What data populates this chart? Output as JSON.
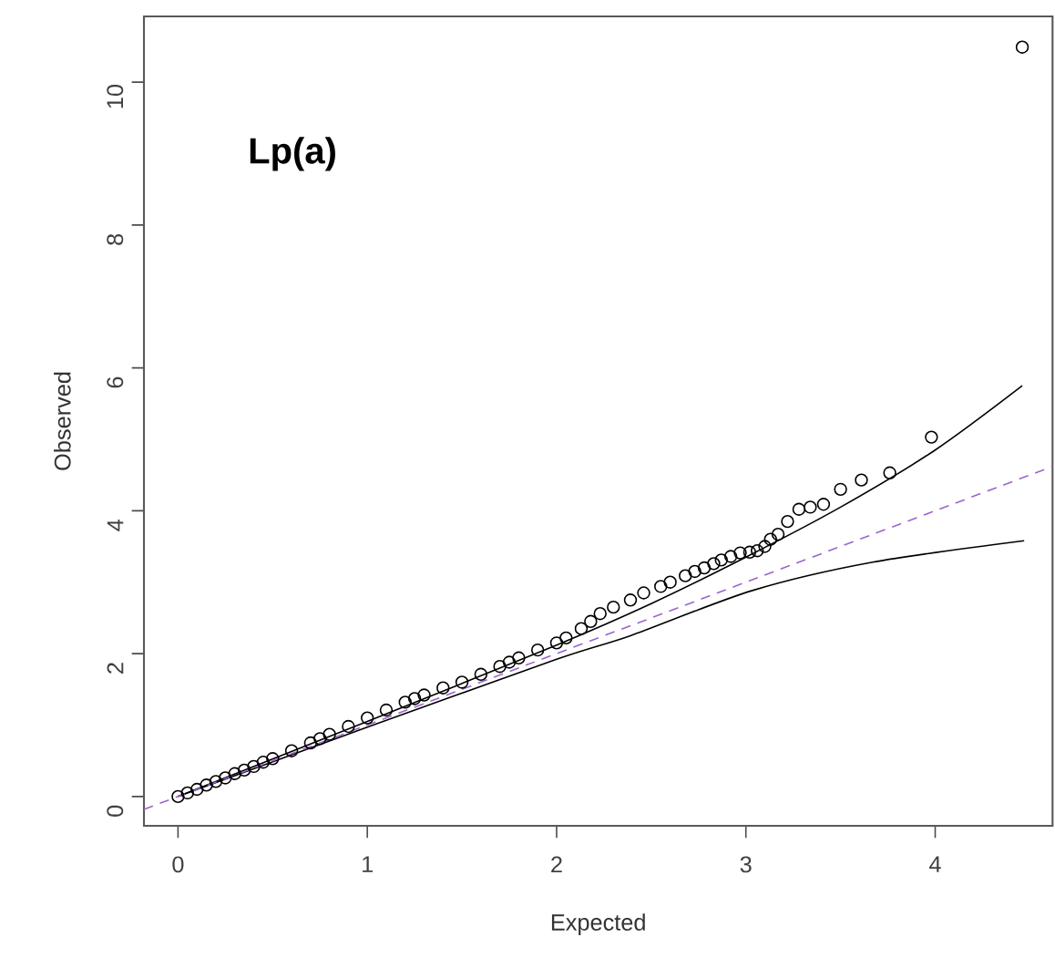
{
  "chart_data": {
    "type": "scatter",
    "title": "Lp(a)",
    "xlabel": "Expected",
    "ylabel": "Observed",
    "xlim": [
      -0.18,
      4.62
    ],
    "ylim": [
      -0.41,
      10.92
    ],
    "xticks": [
      0,
      1,
      2,
      3,
      4
    ],
    "yticks": [
      0,
      2,
      4,
      6,
      8,
      10
    ],
    "grid": false,
    "series": [
      {
        "color": "#000000",
        "marker": "circle",
        "x": [
          0,
          0.05,
          0.1,
          0.15,
          0.2,
          0.25,
          0.3,
          0.35,
          0.4,
          0.45,
          0.5,
          0.6,
          0.7,
          0.75,
          0.8,
          0.9,
          1,
          1.1,
          1.2,
          1.25,
          1.3,
          1.4,
          1.5,
          1.6,
          1.7,
          1.75,
          1.8,
          1.9,
          2.0,
          2.05,
          2.13,
          2.18,
          2.23,
          2.3,
          2.39,
          2.46,
          2.55,
          2.6,
          2.68,
          2.73,
          2.78,
          2.83,
          2.87,
          2.92,
          2.97,
          3.02,
          3.06,
          3.1,
          3.13,
          3.17,
          3.22,
          3.28,
          3.34,
          3.41,
          3.5,
          3.61,
          3.76,
          3.98,
          4.46
        ],
        "values": [
          0,
          0.05,
          0.1,
          0.16,
          0.21,
          0.26,
          0.32,
          0.37,
          0.42,
          0.48,
          0.53,
          0.64,
          0.75,
          0.81,
          0.87,
          0.98,
          1.1,
          1.21,
          1.32,
          1.37,
          1.42,
          1.52,
          1.6,
          1.71,
          1.82,
          1.88,
          1.94,
          2.05,
          2.15,
          2.22,
          2.35,
          2.45,
          2.56,
          2.65,
          2.75,
          2.85,
          2.94,
          3.0,
          3.09,
          3.15,
          3.2,
          3.26,
          3.31,
          3.36,
          3.41,
          3.42,
          3.44,
          3.5,
          3.6,
          3.67,
          3.85,
          4.02,
          4.05,
          4.09,
          4.3,
          4.43,
          4.53,
          5.03,
          10.49
        ]
      },
      {
        "type": "line",
        "color": "#000000",
        "line_style": "solid",
        "x": [
          0,
          1,
          2,
          2.5,
          3,
          3.5,
          4,
          4.46
        ],
        "values": [
          0,
          1.05,
          2.12,
          2.7,
          3.35,
          4.05,
          4.85,
          5.75
        ]
      },
      {
        "type": "line",
        "color": "#000000",
        "line_style": "solid",
        "x": [
          0,
          1,
          2,
          2.39,
          3.03,
          3.67,
          4.47
        ],
        "values": [
          0,
          0.97,
          1.92,
          2.25,
          2.88,
          3.28,
          3.58
        ]
      },
      {
        "type": "line",
        "color": "#9966cc",
        "line_style": "dashed",
        "x": [
          -0.18,
          4.62
        ],
        "values": [
          -0.18,
          4.62
        ]
      }
    ]
  }
}
